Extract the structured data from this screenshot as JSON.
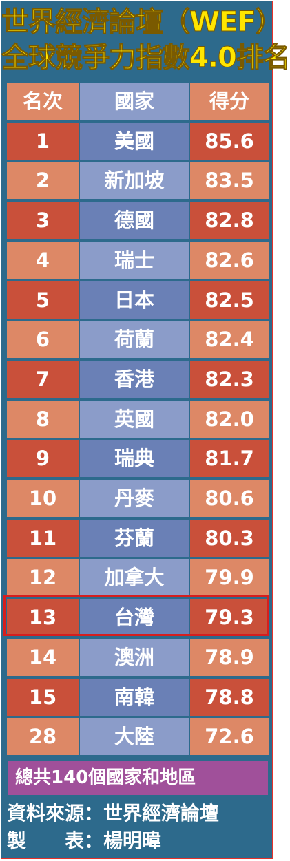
{
  "title_line1": "世界經濟論壇（WEF）",
  "title_line2": "全球競爭力指數4.0排名",
  "headers": {
    "rank": "名次",
    "country": "國家",
    "score": "得分"
  },
  "rows": [
    {
      "rank": "1",
      "country": "美國",
      "score": "85.6"
    },
    {
      "rank": "2",
      "country": "新加坡",
      "score": "83.5"
    },
    {
      "rank": "3",
      "country": "德國",
      "score": "82.8"
    },
    {
      "rank": "4",
      "country": "瑞士",
      "score": "82.6"
    },
    {
      "rank": "5",
      "country": "日本",
      "score": "82.5"
    },
    {
      "rank": "6",
      "country": "荷蘭",
      "score": "82.4"
    },
    {
      "rank": "7",
      "country": "香港",
      "score": "82.3"
    },
    {
      "rank": "8",
      "country": "英國",
      "score": "82.0"
    },
    {
      "rank": "9",
      "country": "瑞典",
      "score": "81.7"
    },
    {
      "rank": "10",
      "country": "丹麥",
      "score": "80.6"
    },
    {
      "rank": "11",
      "country": "芬蘭",
      "score": "80.3"
    },
    {
      "rank": "12",
      "country": "加拿大",
      "score": "79.9"
    },
    {
      "rank": "13",
      "country": "台灣",
      "score": "79.3"
    },
    {
      "rank": "14",
      "country": "澳洲",
      "score": "78.9"
    },
    {
      "rank": "15",
      "country": "南韓",
      "score": "78.8"
    },
    {
      "rank": "28",
      "country": "大陸",
      "score": "72.6"
    }
  ],
  "footer_total": "總共140個國家和地區",
  "source_line": "資料來源：世界經濟論壇",
  "maker_line": "製　　表：楊明暐",
  "colors": {
    "background": "#2d6a8c",
    "title": "#ffe600",
    "rank_score_dark": "#c9503a",
    "rank_score_light": "#dd8866",
    "name_dark": "#6a80b6",
    "name_light": "#8b9cc9",
    "highlight": "#d61e1e",
    "footer_band": "#a0509a"
  },
  "chart_data": {
    "type": "table",
    "title": "世界經濟論壇（WEF）全球競爭力指數4.0排名",
    "columns": [
      "名次",
      "國家",
      "得分"
    ],
    "rows": [
      [
        "1",
        "美國",
        85.6
      ],
      [
        "2",
        "新加坡",
        83.5
      ],
      [
        "3",
        "德國",
        82.8
      ],
      [
        "4",
        "瑞士",
        82.6
      ],
      [
        "5",
        "日本",
        82.5
      ],
      [
        "6",
        "荷蘭",
        82.4
      ],
      [
        "7",
        "香港",
        82.3
      ],
      [
        "8",
        "英國",
        82.0
      ],
      [
        "9",
        "瑞典",
        81.7
      ],
      [
        "10",
        "丹麥",
        80.6
      ],
      [
        "11",
        "芬蘭",
        80.3
      ],
      [
        "12",
        "加拿大",
        79.9
      ],
      [
        "13",
        "台灣",
        79.3
      ],
      [
        "14",
        "澳洲",
        78.9
      ],
      [
        "15",
        "南韓",
        78.8
      ],
      [
        "28",
        "大陸",
        72.6
      ]
    ],
    "highlighted_row": "13"
  }
}
